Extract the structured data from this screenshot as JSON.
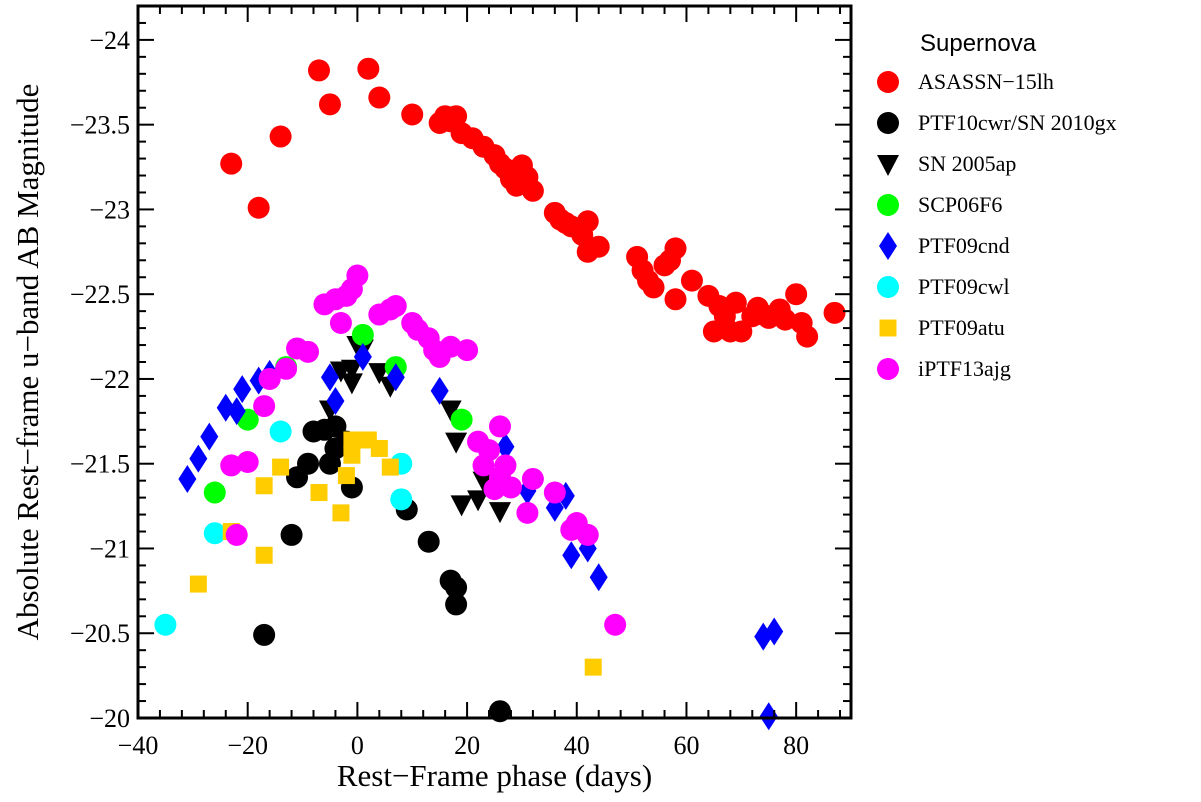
{
  "chart_data": {
    "type": "scatter",
    "xlabel": "Rest−Frame phase (days)",
    "ylabel": "Absolute Rest−frame u−band AB Magnitude",
    "xlim": [
      -40,
      90
    ],
    "ylim": [
      -20,
      -24.2
    ],
    "y_inverted": true,
    "x_ticks": [
      -40,
      -20,
      0,
      20,
      40,
      60,
      80
    ],
    "x_tick_labels": [
      "−40",
      "−20",
      "0",
      "20",
      "40",
      "60",
      "80"
    ],
    "y_ticks": [
      -24,
      -23.5,
      -23,
      -22.5,
      -22,
      -21.5,
      -21,
      -20.5,
      -20
    ],
    "y_tick_labels": [
      "−24",
      "−23.5",
      "−23",
      "−22.5",
      "−22",
      "−21.5",
      "−21",
      "−20.5",
      "−20"
    ],
    "grid": false,
    "legend": {
      "title": "Supernova",
      "placement": "outside-right"
    },
    "series": [
      {
        "name": "ASASSN−15lh",
        "color": "#ff0000",
        "marker": "circle",
        "points": [
          [
            -23,
            -23.27
          ],
          [
            -18,
            -23.01
          ],
          [
            -14,
            -23.43
          ],
          [
            -7,
            -23.82
          ],
          [
            -5,
            -23.62
          ],
          [
            2,
            -23.83
          ],
          [
            4,
            -23.66
          ],
          [
            10,
            -23.56
          ],
          [
            15,
            -23.51
          ],
          [
            16,
            -23.55
          ],
          [
            17,
            -23.52
          ],
          [
            18,
            -23.55
          ],
          [
            19,
            -23.45
          ],
          [
            21,
            -23.42
          ],
          [
            23,
            -23.37
          ],
          [
            25,
            -23.32
          ],
          [
            26,
            -23.27
          ],
          [
            27,
            -23.24
          ],
          [
            28,
            -23.18
          ],
          [
            29,
            -23.14
          ],
          [
            30,
            -23.26
          ],
          [
            31,
            -23.19
          ],
          [
            32,
            -23.11
          ],
          [
            36,
            -22.98
          ],
          [
            37,
            -22.94
          ],
          [
            38,
            -22.92
          ],
          [
            39,
            -22.9
          ],
          [
            41,
            -22.85
          ],
          [
            42,
            -22.93
          ],
          [
            42,
            -22.75
          ],
          [
            44,
            -22.78
          ],
          [
            51,
            -22.72
          ],
          [
            52,
            -22.64
          ],
          [
            53,
            -22.58
          ],
          [
            54,
            -22.54
          ],
          [
            56,
            -22.67
          ],
          [
            57,
            -22.7
          ],
          [
            58,
            -22.77
          ],
          [
            58,
            -22.47
          ],
          [
            61,
            -22.58
          ],
          [
            64,
            -22.49
          ],
          [
            65,
            -22.28
          ],
          [
            66,
            -22.43
          ],
          [
            67,
            -22.37
          ],
          [
            68,
            -22.28
          ],
          [
            69,
            -22.45
          ],
          [
            70,
            -22.28
          ],
          [
            72,
            -22.37
          ],
          [
            73,
            -22.42
          ],
          [
            74,
            -22.38
          ],
          [
            75,
            -22.36
          ],
          [
            77,
            -22.41
          ],
          [
            78,
            -22.35
          ],
          [
            80,
            -22.5
          ],
          [
            81,
            -22.33
          ],
          [
            82,
            -22.25
          ],
          [
            87,
            -22.39
          ]
        ]
      },
      {
        "name": "PTF10cwr/SN 2010gx",
        "color": "#000000",
        "marker": "circle",
        "points": [
          [
            -17,
            -20.49
          ],
          [
            -12,
            -21.08
          ],
          [
            -11,
            -21.42
          ],
          [
            -9,
            -21.5
          ],
          [
            -8,
            -21.69
          ],
          [
            -6,
            -21.7
          ],
          [
            -5,
            -21.5
          ],
          [
            -4,
            -21.59
          ],
          [
            -4,
            -21.72
          ],
          [
            -2,
            -21.63
          ],
          [
            -1,
            -21.36
          ],
          [
            9,
            -21.23
          ],
          [
            13,
            -21.04
          ],
          [
            17,
            -20.81
          ],
          [
            18,
            -20.77
          ],
          [
            18,
            -20.67
          ],
          [
            26,
            -20.04
          ]
        ]
      },
      {
        "name": "SN 2005ap",
        "color": "#000000",
        "marker": "triangle-down",
        "points": [
          [
            -5,
            -21.82
          ],
          [
            -3,
            -22.05
          ],
          [
            -1,
            -22.06
          ],
          [
            -1,
            -21.98
          ],
          [
            0,
            -22.2
          ],
          [
            1,
            -22.18
          ],
          [
            4,
            -22.04
          ],
          [
            6,
            -21.96
          ],
          [
            17,
            -21.82
          ],
          [
            18,
            -21.63
          ],
          [
            19,
            -21.26
          ],
          [
            22,
            -21.29
          ],
          [
            23,
            -21.4
          ],
          [
            26,
            -21.22
          ]
        ]
      },
      {
        "name": "SCP06F6",
        "color": "#00ff00",
        "marker": "circle",
        "points": [
          [
            -26,
            -21.33
          ],
          [
            -20,
            -21.76
          ],
          [
            -13,
            -22.07
          ],
          [
            1,
            -22.26
          ],
          [
            7,
            -22.07
          ],
          [
            19,
            -21.76
          ]
        ]
      },
      {
        "name": "PTF09cnd",
        "color": "#0000ff",
        "marker": "diamond",
        "points": [
          [
            -31,
            -21.41
          ],
          [
            -29,
            -21.53
          ],
          [
            -27,
            -21.66
          ],
          [
            -24,
            -21.83
          ],
          [
            -22,
            -21.81
          ],
          [
            -21,
            -21.94
          ],
          [
            -18,
            -21.99
          ],
          [
            -16,
            -22.03
          ],
          [
            -5,
            -22.01
          ],
          [
            -4,
            -21.87
          ],
          [
            1,
            -22.13
          ],
          [
            7,
            -22.01
          ],
          [
            15,
            -21.93
          ],
          [
            27,
            -21.6
          ],
          [
            31,
            -21.34
          ],
          [
            36,
            -21.24
          ],
          [
            38,
            -21.31
          ],
          [
            39,
            -20.96
          ],
          [
            42,
            -21.0
          ],
          [
            44,
            -20.83
          ],
          [
            74,
            -20.48
          ],
          [
            75,
            -20.01
          ],
          [
            76,
            -20.51
          ]
        ]
      },
      {
        "name": "PTF09cwl",
        "color": "#00ffff",
        "marker": "circle",
        "points": [
          [
            -35,
            -20.55
          ],
          [
            -26,
            -21.09
          ],
          [
            -14,
            -21.69
          ],
          [
            8,
            -21.5
          ],
          [
            8,
            -21.29
          ]
        ]
      },
      {
        "name": "PTF09atu",
        "color": "#ffcc00",
        "marker": "square",
        "points": [
          [
            -29,
            -20.79
          ],
          [
            -23,
            -21.1
          ],
          [
            -17,
            -21.37
          ],
          [
            -17,
            -20.96
          ],
          [
            -14,
            -21.48
          ],
          [
            -7,
            -21.33
          ],
          [
            -3,
            -21.21
          ],
          [
            -2,
            -21.43
          ],
          [
            -1,
            -21.64
          ],
          [
            -1,
            -21.55
          ],
          [
            2,
            -21.64
          ],
          [
            4,
            -21.59
          ],
          [
            6,
            -21.48
          ],
          [
            43,
            -20.3
          ]
        ]
      },
      {
        "name": "iPTF13ajg",
        "color": "#ff00ff",
        "marker": "circle",
        "points": [
          [
            -23,
            -21.49
          ],
          [
            -22,
            -21.08
          ],
          [
            -20,
            -21.51
          ],
          [
            -17,
            -21.84
          ],
          [
            -16,
            -22.0
          ],
          [
            -13,
            -22.06
          ],
          [
            -11,
            -22.18
          ],
          [
            -9,
            -22.16
          ],
          [
            -6,
            -22.44
          ],
          [
            -4,
            -22.47
          ],
          [
            -3,
            -22.33
          ],
          [
            -2,
            -22.49
          ],
          [
            -1,
            -22.53
          ],
          [
            0,
            -22.61
          ],
          [
            4,
            -22.38
          ],
          [
            6,
            -22.41
          ],
          [
            7,
            -22.43
          ],
          [
            10,
            -22.33
          ],
          [
            11,
            -22.29
          ],
          [
            13,
            -22.24
          ],
          [
            14,
            -22.17
          ],
          [
            15,
            -22.13
          ],
          [
            17,
            -22.19
          ],
          [
            20,
            -22.17
          ],
          [
            22,
            -21.63
          ],
          [
            23,
            -21.49
          ],
          [
            24,
            -21.58
          ],
          [
            25,
            -21.35
          ],
          [
            26,
            -21.42
          ],
          [
            26,
            -21.72
          ],
          [
            27,
            -21.49
          ],
          [
            28,
            -21.36
          ],
          [
            31,
            -21.21
          ],
          [
            32,
            -21.41
          ],
          [
            36,
            -21.33
          ],
          [
            39,
            -21.11
          ],
          [
            40,
            -21.15
          ],
          [
            42,
            -21.08
          ],
          [
            47,
            -20.55
          ]
        ]
      }
    ]
  }
}
